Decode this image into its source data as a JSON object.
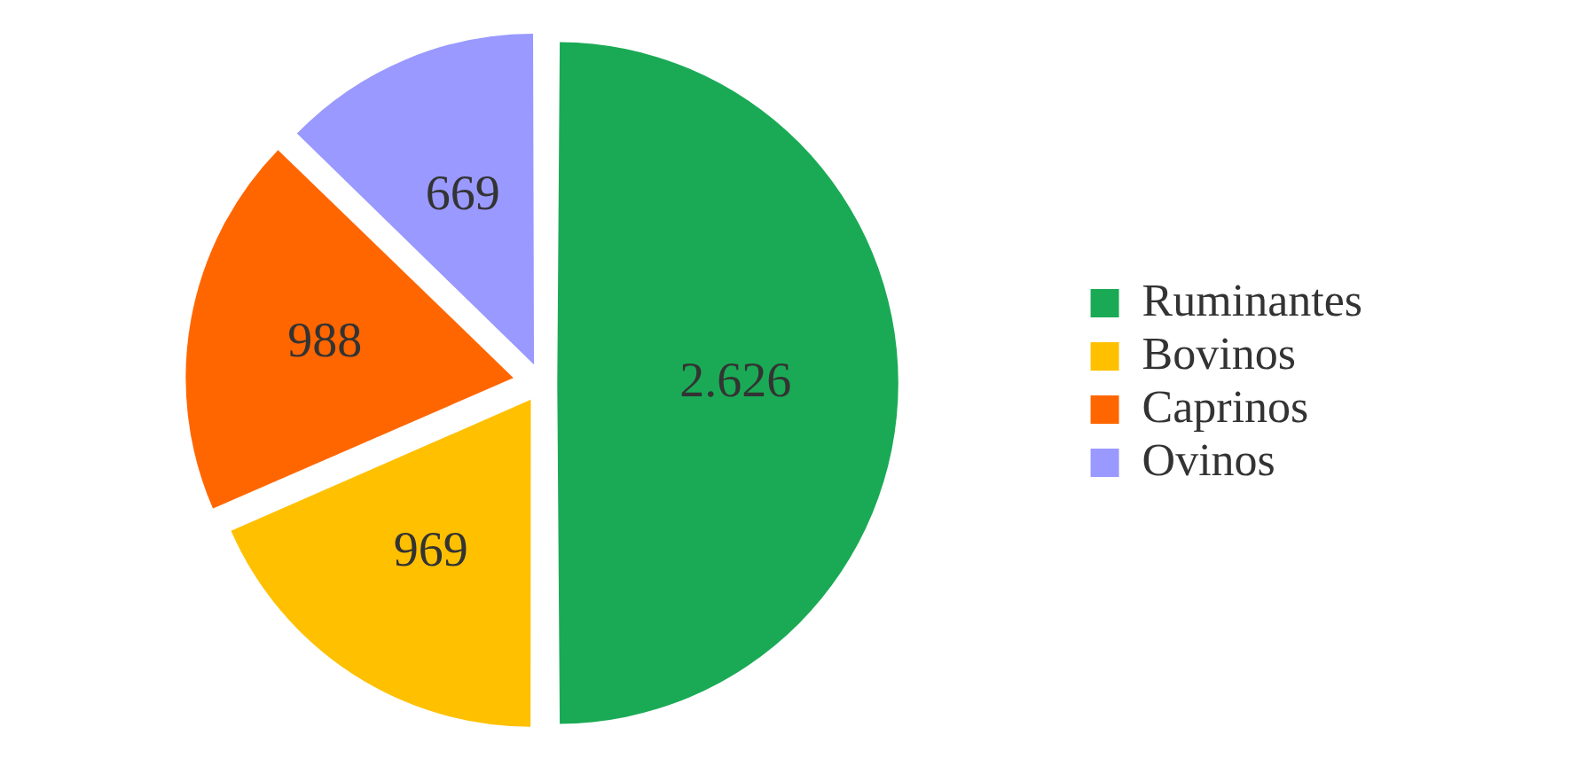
{
  "chart_data": {
    "type": "pie",
    "categories": [
      "Ruminantes",
      "Bovinos",
      "Caprinos",
      "Ovinos"
    ],
    "values": [
      2626,
      969,
      988,
      669
    ],
    "colors": [
      "#1aaa55",
      "#ffc000",
      "#ff6600",
      "#9999ff"
    ],
    "value_labels": [
      "2.626",
      "969",
      "988",
      "669"
    ],
    "legend": "right"
  }
}
